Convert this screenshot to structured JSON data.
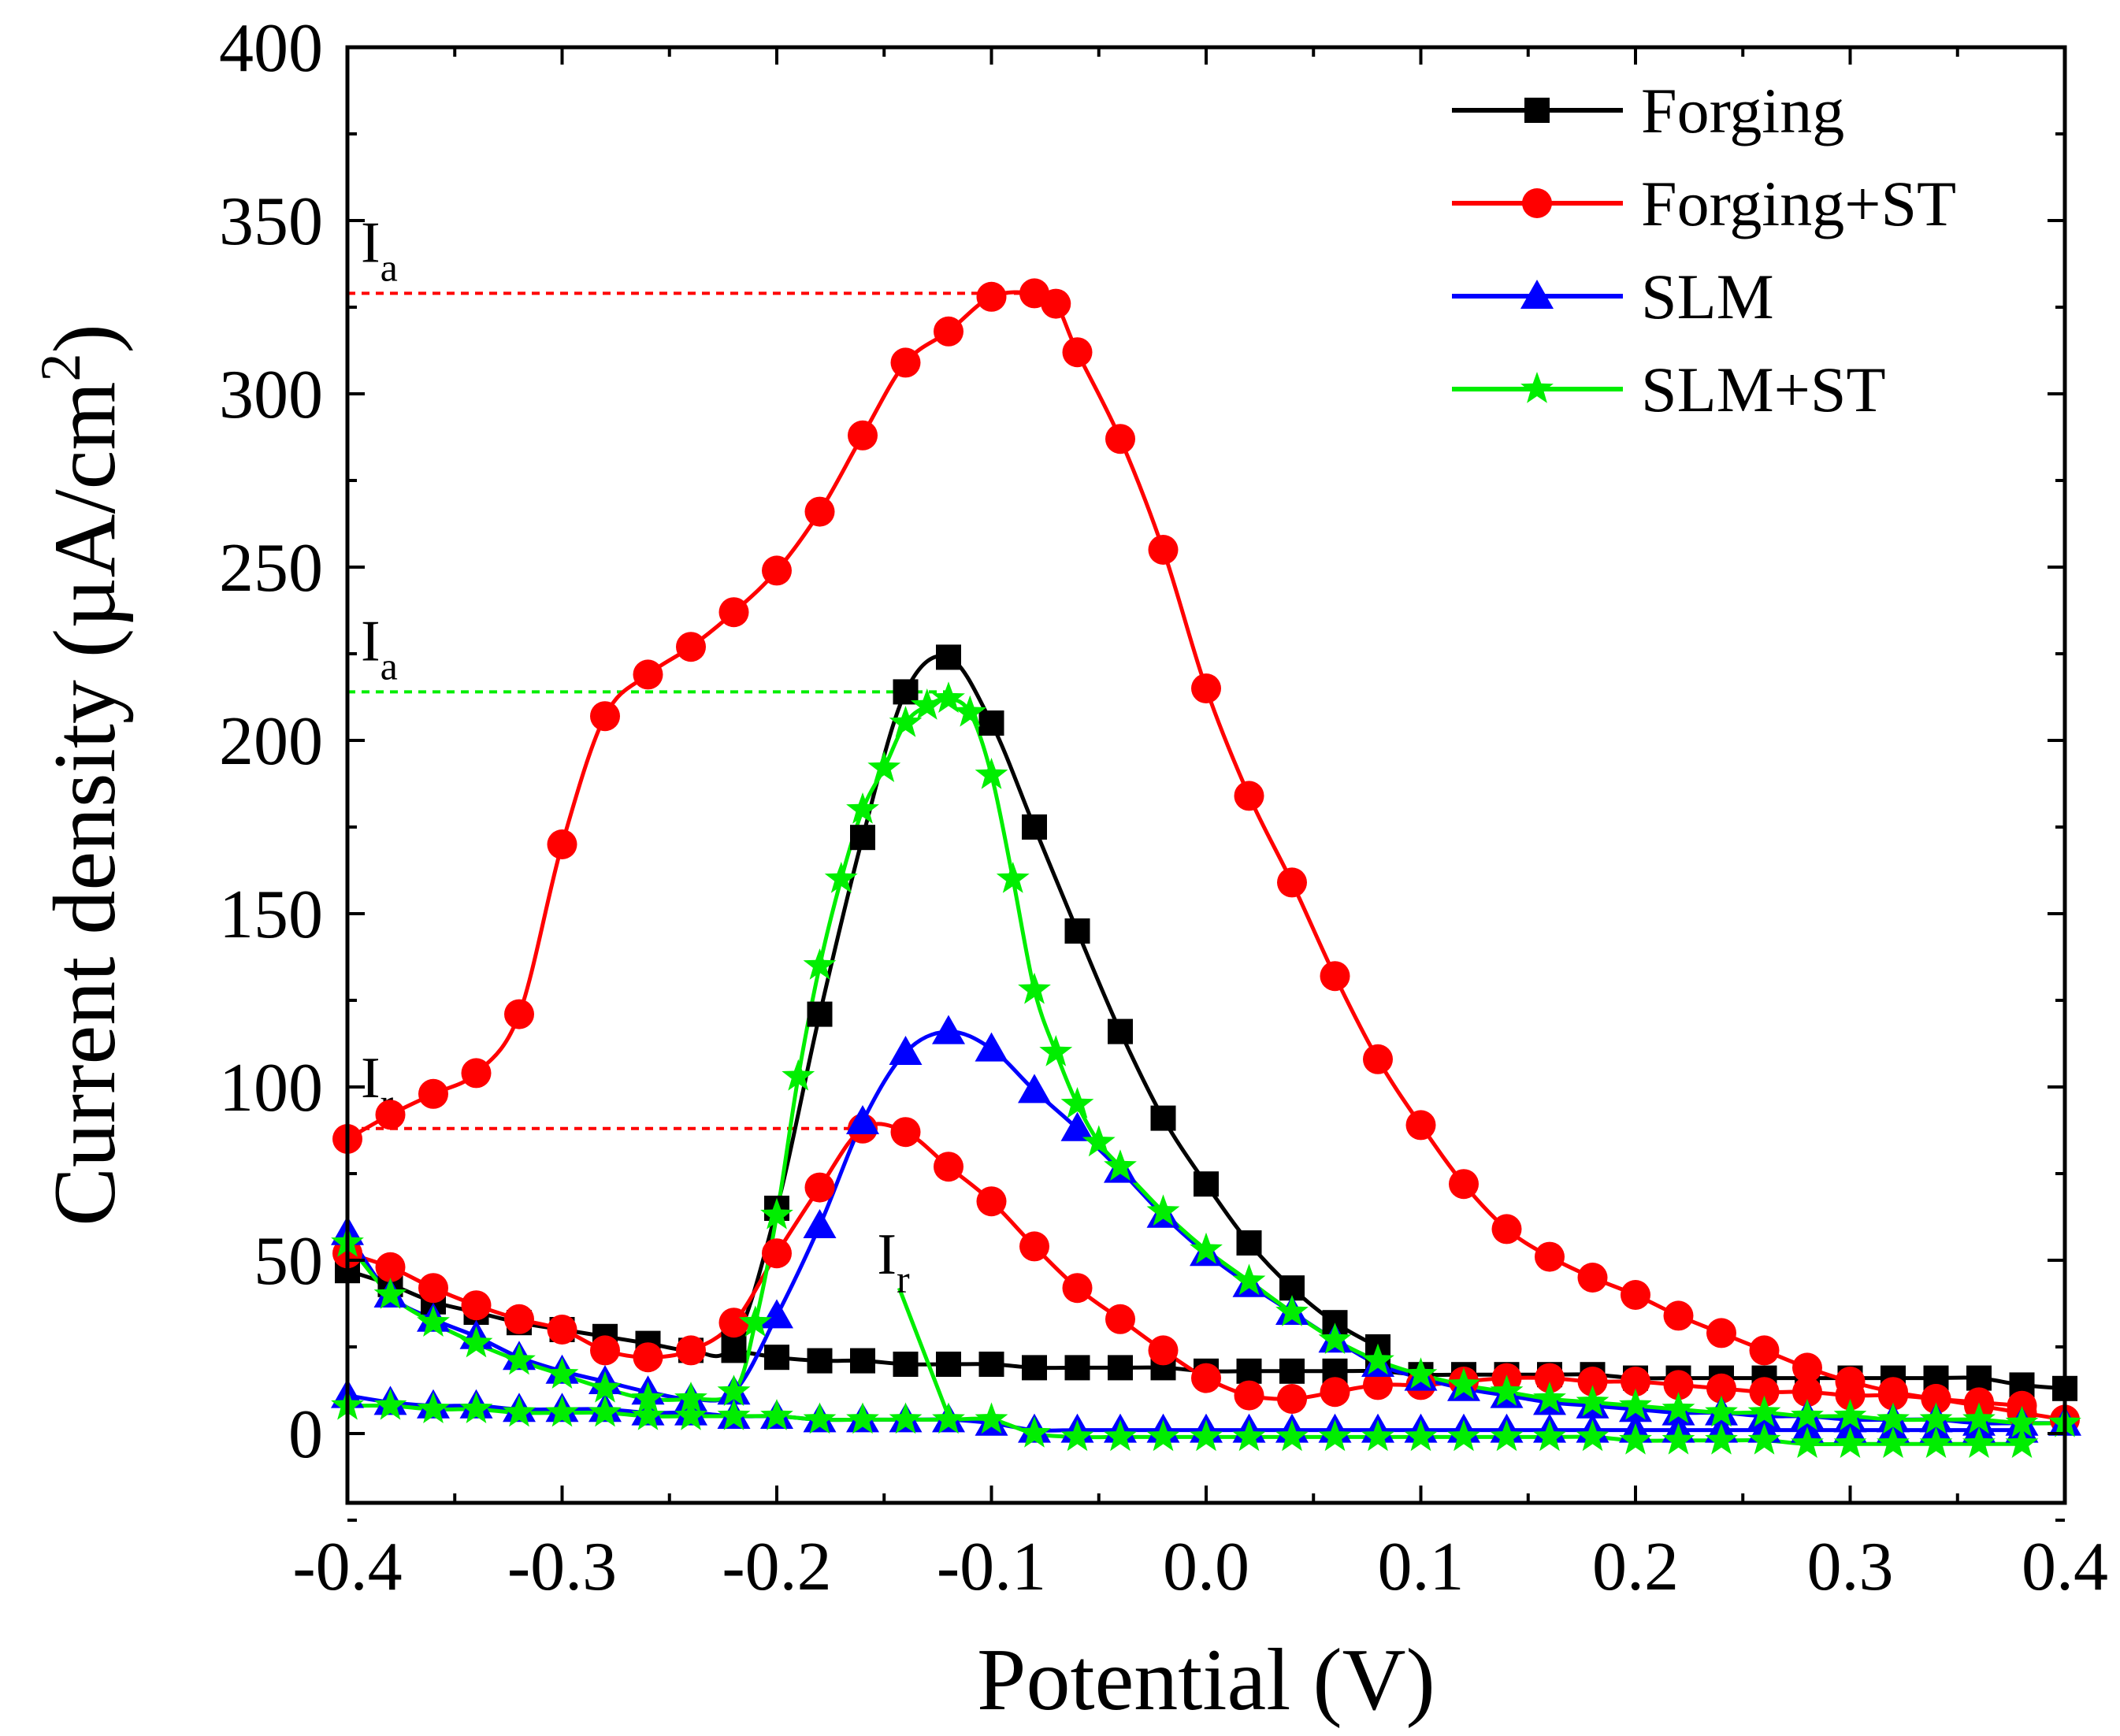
{
  "chart_data": {
    "type": "line",
    "title": "",
    "xlabel": "Potential (V)",
    "ylabel": "Current density (µA/cm",
    "ylabel_sup": "2",
    "ylabel_close": ")",
    "xlim": [
      -0.4,
      0.4
    ],
    "ylim": [
      -20,
      400
    ],
    "xticks": [
      -0.4,
      -0.3,
      -0.2,
      -0.1,
      0.0,
      0.1,
      0.2,
      0.3,
      0.4
    ],
    "xtick_labels": [
      "-0.4",
      "-0.3",
      "-0.2",
      "-0.1",
      "0.0",
      "0.1",
      "0.2",
      "0.3",
      "0.4"
    ],
    "yticks": [
      0,
      50,
      100,
      150,
      200,
      250,
      300,
      350,
      400
    ],
    "ytick_labels": [
      "0",
      "50",
      "100",
      "150",
      "200",
      "250",
      "300",
      "350",
      "400"
    ],
    "legend_position": "top-right",
    "series": [
      {
        "name": "Forging",
        "color": "#000000",
        "marker": "square",
        "forward": {
          "x": [
            -0.4,
            -0.38,
            -0.36,
            -0.34,
            -0.32,
            -0.3,
            -0.28,
            -0.26,
            -0.24,
            -0.22,
            -0.2,
            -0.18,
            -0.16,
            -0.14,
            -0.12,
            -0.1,
            -0.08,
            -0.06,
            -0.04,
            -0.02,
            0.0,
            0.02,
            0.04,
            0.06,
            0.08
          ],
          "y": [
            47,
            43,
            38,
            35,
            32,
            30,
            28,
            26,
            24,
            26,
            65,
            121,
            172,
            214,
            224,
            205,
            175,
            145,
            116,
            91,
            72,
            55,
            42,
            32,
            25
          ]
        },
        "reverse": {
          "x": [
            0.4,
            0.38,
            0.36,
            0.34,
            0.32,
            0.3,
            0.28,
            0.26,
            0.24,
            0.22,
            0.2,
            0.18,
            0.16,
            0.14,
            0.12,
            0.1,
            0.08,
            0.06,
            0.04,
            0.02,
            0.0,
            -0.02,
            -0.04,
            -0.06,
            -0.08,
            -0.1,
            -0.12,
            -0.14,
            -0.16,
            -0.18,
            -0.2,
            -0.22
          ],
          "y": [
            13,
            14,
            16,
            16,
            16,
            16,
            16,
            16,
            16,
            16,
            16,
            17,
            17,
            17,
            17,
            17,
            18,
            18,
            18,
            18,
            18,
            19,
            19,
            19,
            19,
            20,
            20,
            20,
            21,
            21,
            22,
            24
          ]
        }
      },
      {
        "name": "Forging+ST",
        "color": "#ff0000",
        "marker": "circle",
        "forward": {
          "x": [
            -0.4,
            -0.38,
            -0.36,
            -0.34,
            -0.32,
            -0.3,
            -0.28,
            -0.26,
            -0.24,
            -0.22,
            -0.2,
            -0.18,
            -0.16,
            -0.14,
            -0.12,
            -0.1,
            -0.08,
            -0.07,
            -0.06,
            -0.04,
            -0.02,
            0.0,
            0.02,
            0.04,
            0.06,
            0.08,
            0.1,
            0.12,
            0.14,
            0.16,
            0.18,
            0.2,
            0.22,
            0.24,
            0.26,
            0.28,
            0.3,
            0.32,
            0.34,
            0.36,
            0.38,
            0.4
          ],
          "y": [
            85,
            92,
            98,
            104,
            121,
            170,
            207,
            219,
            227,
            237,
            249,
            266,
            288,
            309,
            318,
            328,
            329,
            326,
            312,
            287,
            255,
            215,
            184,
            159,
            132,
            108,
            89,
            72,
            59,
            51,
            45,
            40,
            34,
            29,
            24,
            19,
            15,
            12,
            10,
            8,
            6,
            4
          ]
        },
        "reverse": {
          "x": [
            0.38,
            0.36,
            0.34,
            0.32,
            0.3,
            0.28,
            0.26,
            0.24,
            0.22,
            0.2,
            0.18,
            0.16,
            0.14,
            0.12,
            0.1,
            0.08,
            0.06,
            0.04,
            0.02,
            0.0,
            -0.02,
            -0.04,
            -0.06,
            -0.08,
            -0.1,
            -0.12,
            -0.14,
            -0.16,
            -0.18,
            -0.2,
            -0.22,
            -0.24,
            -0.26,
            -0.28,
            -0.3,
            -0.32,
            -0.34,
            -0.36,
            -0.38,
            -0.4
          ],
          "y": [
            8,
            9,
            10,
            11,
            11,
            12,
            12,
            13,
            14,
            15,
            15,
            16,
            16,
            15,
            14,
            14,
            12,
            10,
            11,
            16,
            24,
            33,
            42,
            54,
            67,
            77,
            87,
            88,
            71,
            52,
            32,
            24,
            22,
            24,
            30,
            33,
            37,
            42,
            48,
            52
          ]
        }
      },
      {
        "name": "SLM",
        "color": "#0000ff",
        "marker": "triangle",
        "forward": {
          "x": [
            -0.4,
            -0.38,
            -0.36,
            -0.34,
            -0.32,
            -0.3,
            -0.28,
            -0.26,
            -0.24,
            -0.22,
            -0.2,
            -0.18,
            -0.16,
            -0.14,
            -0.12,
            -0.1,
            -0.08,
            -0.06,
            -0.04,
            -0.02,
            0.0,
            0.02,
            0.04,
            0.06,
            0.08,
            0.1,
            0.12,
            0.14,
            0.16,
            0.18,
            0.2,
            0.22,
            0.24,
            0.26,
            0.28,
            0.3,
            0.32,
            0.34,
            0.36,
            0.38,
            0.4
          ],
          "y": [
            58,
            40,
            33,
            28,
            22,
            18,
            15,
            12,
            10,
            12,
            34,
            60,
            90,
            110,
            116,
            111,
            99,
            88,
            76,
            63,
            52,
            43,
            35,
            27,
            20,
            16,
            13,
            11,
            9,
            8,
            7,
            6,
            6,
            5,
            5,
            4,
            4,
            4,
            3,
            3,
            3
          ]
        },
        "reverse": {
          "x": [
            0.38,
            0.36,
            0.34,
            0.32,
            0.3,
            0.28,
            0.26,
            0.24,
            0.22,
            0.2,
            0.18,
            0.16,
            0.14,
            0.12,
            0.1,
            0.08,
            0.06,
            0.04,
            0.02,
            0.0,
            -0.02,
            -0.04,
            -0.06,
            -0.08,
            -0.1,
            -0.12,
            -0.14,
            -0.16,
            -0.18,
            -0.2,
            -0.22,
            -0.24,
            -0.26,
            -0.28,
            -0.3,
            -0.32,
            -0.34,
            -0.36,
            -0.38,
            -0.4
          ],
          "y": [
            1,
            1,
            1,
            1,
            1,
            1,
            1,
            1,
            1,
            1,
            1,
            1,
            1,
            1,
            1,
            1,
            1,
            1,
            1,
            1,
            1,
            1,
            1,
            1,
            3,
            4,
            4,
            4,
            4,
            5,
            5,
            6,
            6,
            7,
            7,
            7,
            8,
            8,
            9,
            11
          ]
        }
      },
      {
        "name": "SLM+ST",
        "color": "#00ee00",
        "marker": "star",
        "forward": {
          "x": [
            -0.4,
            -0.38,
            -0.36,
            -0.34,
            -0.32,
            -0.3,
            -0.28,
            -0.26,
            -0.24,
            -0.22,
            -0.21,
            -0.2,
            -0.19,
            -0.18,
            -0.17,
            -0.16,
            -0.15,
            -0.14,
            -0.13,
            -0.12,
            -0.11,
            -0.1,
            -0.09,
            -0.08,
            -0.07,
            -0.06,
            -0.05,
            -0.04,
            -0.02,
            0.0,
            0.02,
            0.04,
            0.06,
            0.08,
            0.1,
            0.12,
            0.14,
            0.16,
            0.18,
            0.2,
            0.22,
            0.24,
            0.26,
            0.28,
            0.3,
            0.32,
            0.34,
            0.36,
            0.38,
            0.4
          ],
          "y": [
            55,
            40,
            32,
            26,
            21,
            17,
            13,
            10,
            10,
            12,
            32,
            63,
            103,
            135,
            160,
            180,
            192,
            205,
            210,
            212,
            208,
            190,
            160,
            128,
            110,
            95,
            84,
            77,
            64,
            53,
            44,
            35,
            27,
            21,
            17,
            14,
            12,
            10,
            9,
            8,
            7,
            6,
            6,
            5,
            5,
            4,
            4,
            4,
            3,
            3
          ]
        },
        "reverse": {
          "x": [
            0.38,
            0.36,
            0.34,
            0.32,
            0.3,
            0.28,
            0.26,
            0.24,
            0.22,
            0.2,
            0.18,
            0.16,
            0.14,
            0.12,
            0.1,
            0.08,
            0.06,
            0.04,
            0.02,
            0.0,
            -0.02,
            -0.04,
            -0.06,
            -0.08,
            -0.1,
            -0.12,
            -0.14,
            -0.16,
            -0.18,
            -0.2,
            -0.22,
            -0.24,
            -0.26,
            -0.28,
            -0.3,
            -0.32,
            -0.34,
            -0.36,
            -0.38,
            -0.4
          ],
          "y": [
            -3,
            -3,
            -3,
            -3,
            -3,
            -3,
            -2,
            -2,
            -2,
            -2,
            -1,
            -1,
            -1,
            -1,
            -1,
            -1,
            -1,
            -1,
            -1,
            -1,
            -1,
            -1,
            -1,
            0,
            4,
            4,
            4,
            4,
            4,
            5,
            5,
            5,
            5,
            6,
            6,
            6,
            7,
            7,
            8,
            8
          ]
        }
      }
    ],
    "reference_lines": [
      {
        "label": "I",
        "sub": "a",
        "y": 329,
        "color": "#ff0000",
        "x_from": -0.4,
        "x_to": -0.08
      },
      {
        "label": "I",
        "sub": "a",
        "y": 214,
        "color": "#00ee00",
        "x_from": -0.4,
        "x_to": -0.12
      },
      {
        "label": "I",
        "sub": "r",
        "y": 88,
        "color": "#ff0000",
        "x_from": -0.4,
        "x_to": -0.16
      }
    ],
    "pointer_annotation": {
      "label": "I",
      "sub": "r",
      "color": "#00ee00",
      "from": {
        "x": -0.143,
        "y": 42
      },
      "to": {
        "x": -0.12,
        "y": 5
      }
    }
  }
}
